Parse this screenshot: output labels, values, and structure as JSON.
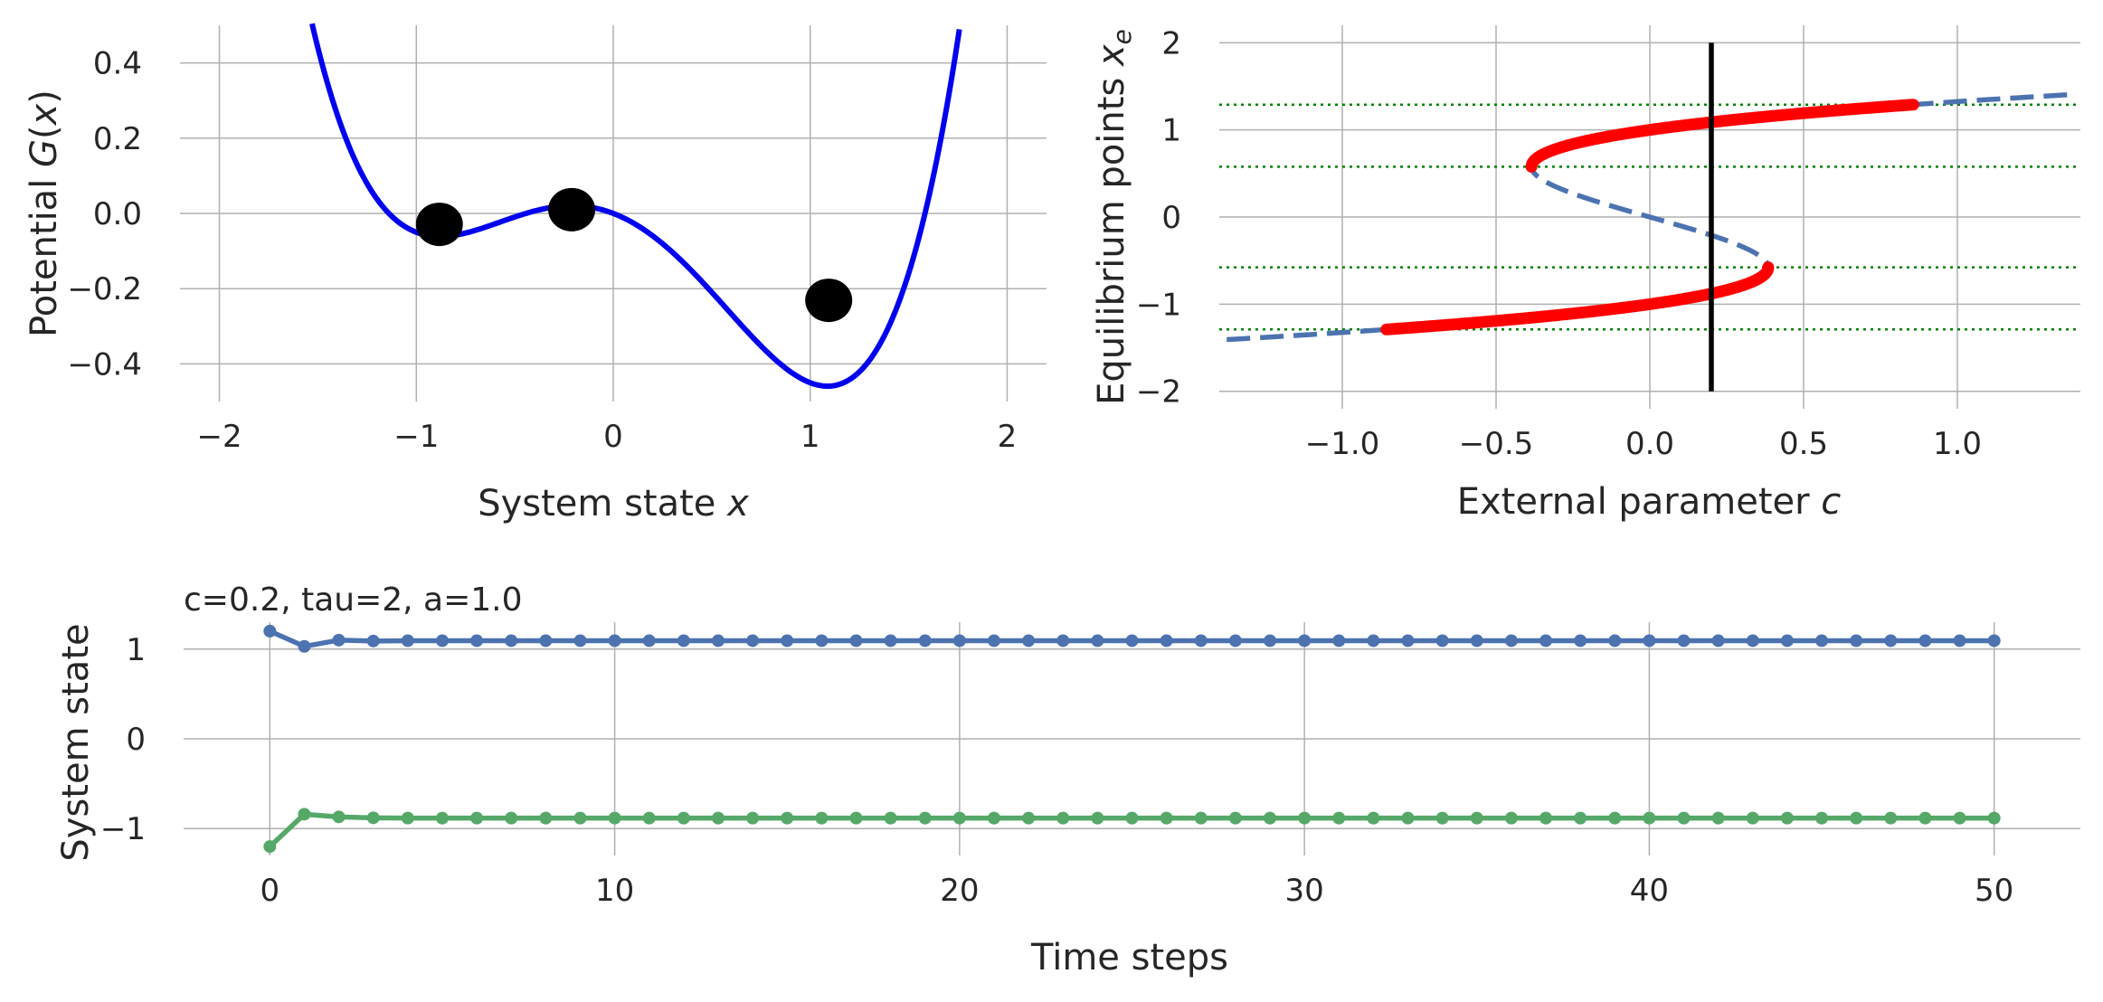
{
  "chart_data": [
    {
      "type": "line",
      "panel": "potential",
      "xlabel": "System state x",
      "xlabel_parts": {
        "text": "System state ",
        "var": "x"
      },
      "ylabel": "Potential G(x)",
      "ylabel_parts": {
        "text": "Potential ",
        "func": "G",
        "arg": "x"
      },
      "xlim": [
        -2.2,
        2.2
      ],
      "ylim": [
        -0.5,
        0.5
      ],
      "xticks": [
        -2,
        -1,
        0,
        1,
        2
      ],
      "yticks": [
        -0.4,
        -0.2,
        0.0,
        0.2,
        0.4
      ],
      "xtick_labels": [
        "−2",
        "−1",
        "0",
        "1",
        "2"
      ],
      "ytick_labels": [
        "−0.4",
        "−0.2",
        "0.0",
        "0.2",
        "0.4"
      ],
      "grid": true,
      "curve": {
        "name": "G(x)",
        "formula": "x^4/4 - x^2/2 - 0.2x",
        "x_range": [
          -1.9,
          1.9
        ],
        "color": "#0000ee"
      },
      "points": [
        {
          "x": -0.883,
          "y": -0.029
        },
        {
          "x": -0.211,
          "y": 0.01
        },
        {
          "x": 1.094,
          "y": -0.231
        }
      ],
      "point_color": "#000000"
    },
    {
      "type": "line",
      "panel": "bifurcation",
      "xlabel": "External parameter c",
      "xlabel_parts": {
        "text": "External parameter ",
        "var": "c"
      },
      "ylabel": "Equilibrium points x_e",
      "ylabel_parts": {
        "text": "Equilibrium points ",
        "var": "x",
        "sub": "e"
      },
      "xlim": [
        -1.4,
        1.4
      ],
      "ylim": [
        -2.2,
        2.2
      ],
      "xticks": [
        -1.0,
        -0.5,
        0.0,
        0.5,
        1.0
      ],
      "yticks": [
        -2,
        -1,
        0,
        1,
        2
      ],
      "xtick_labels": [
        "−1.0",
        "−0.5",
        "0.0",
        "0.5",
        "1.0"
      ],
      "ytick_labels": [
        "−2",
        "−1",
        "0",
        "1",
        "2"
      ],
      "grid": true,
      "equilibrium_curve": {
        "formula": "c = x^3 - x",
        "x_range": [
          -1.45,
          1.45
        ],
        "style": "dashed",
        "color": "#4c72b0"
      },
      "stable_branches": [
        {
          "x_range": [
            -1.29,
            -0.577
          ],
          "color": "#ff0000"
        },
        {
          "x_range": [
            0.577,
            1.29
          ],
          "color": "#ff0000"
        }
      ],
      "hlines": [
        {
          "y": 1.29,
          "style": "dotted",
          "color": "#008000"
        },
        {
          "y": 0.577,
          "style": "dotted",
          "color": "#008000"
        },
        {
          "y": -0.577,
          "style": "dotted",
          "color": "#008000"
        },
        {
          "y": -1.29,
          "style": "dotted",
          "color": "#008000"
        }
      ],
      "vline": {
        "x": 0.2,
        "y_range": [
          -2,
          2
        ],
        "color": "#000000"
      }
    },
    {
      "type": "line",
      "panel": "time-series",
      "title": "c=0.2, tau=2, a=1.0",
      "xlabel": "Time steps",
      "ylabel": "System state",
      "xlim": [
        -2.5,
        52.5
      ],
      "ylim": [
        -1.3,
        1.3
      ],
      "xticks": [
        0,
        10,
        20,
        30,
        40,
        50
      ],
      "yticks": [
        -1,
        0,
        1
      ],
      "xtick_labels": [
        "0",
        "10",
        "20",
        "30",
        "40",
        "50"
      ],
      "ytick_labels": [
        "−1",
        "0",
        "1"
      ],
      "grid": true,
      "series": [
        {
          "color": "#4c72b0",
          "start": [
            1.2,
            1.03,
            1.1,
            1.09
          ],
          "steady": 1.094,
          "n_steps": 51
        },
        {
          "color": "#55a868",
          "start": [
            -1.2,
            -0.84,
            -0.87,
            -0.88
          ],
          "steady": -0.883,
          "n_steps": 51
        }
      ]
    }
  ]
}
